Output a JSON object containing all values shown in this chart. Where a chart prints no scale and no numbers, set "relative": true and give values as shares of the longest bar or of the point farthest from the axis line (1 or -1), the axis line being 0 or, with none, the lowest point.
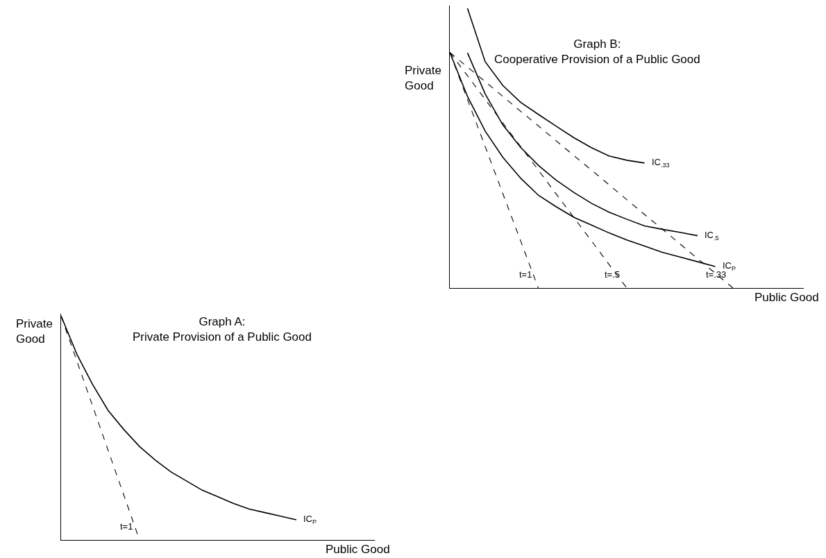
{
  "chart_data": [
    {
      "type": "line",
      "relative": true,
      "title": "Graph A:\nPrivate Provision of a Public Good",
      "xlabel": "Public Good",
      "ylabel": "Private\nGood",
      "categories": [
        null,
        null,
        null,
        null,
        null,
        null,
        null,
        null,
        null,
        null,
        null,
        null,
        null,
        null,
        null,
        null,
        null,
        null,
        null,
        null,
        null
      ],
      "series": [
        {
          "name": "IC$_{P}$",
          "color": "#000000",
          "line_style": "solid",
          "values": [
            1.0,
            0.83,
            0.695,
            0.578,
            0.493,
            0.417,
            0.357,
            0.304,
            0.263,
            0.222,
            0.193,
            0.163,
            0.138,
            0.122,
            0.106,
            0.09,
            null,
            null,
            null,
            null,
            null
          ]
        },
        {
          "name": "t=1",
          "color": "#000000",
          "line_style": "dashed",
          "values": [
            1.0,
            0.8,
            0.6,
            0.4,
            0.2,
            0,
            null,
            null,
            null,
            null,
            null,
            null,
            null,
            null,
            null,
            null,
            null,
            null,
            null,
            null,
            null
          ]
        }
      ],
      "legend": false
    },
    {
      "type": "line",
      "relative": true,
      "title": "Graph B:\nCooperative Provision of a Public Good",
      "xlabel": "Public Good",
      "ylabel": "Private\nGood",
      "categories": [
        null,
        null,
        null,
        null,
        null,
        null,
        null,
        null,
        null,
        null,
        null,
        null,
        null,
        null,
        null,
        null,
        null,
        null,
        null,
        null,
        null
      ],
      "series": [
        {
          "name": "IC$_{.33}$",
          "color": "#000000",
          "line_style": "solid",
          "values": [
            null,
            1.0,
            0.809,
            0.724,
            0.664,
            0.621,
            0.579,
            0.538,
            0.502,
            0.472,
            0.457,
            0.447,
            null,
            null,
            null,
            null,
            null,
            null,
            null,
            null,
            null
          ]
        },
        {
          "name": "IC$_{.5}$",
          "color": "#000000",
          "line_style": "solid",
          "values": [
            null,
            0.841,
            0.694,
            0.583,
            0.503,
            0.439,
            0.386,
            0.342,
            0.303,
            0.271,
            0.246,
            0.222,
            0.21,
            0.199,
            0.187,
            null,
            null,
            null,
            null,
            null,
            null
          ]
        },
        {
          "name": "IC$_{P}$",
          "color": "#000000",
          "line_style": "solid",
          "values": [
            0.843,
            0.685,
            0.561,
            0.467,
            0.393,
            0.332,
            0.291,
            0.253,
            0.225,
            0.197,
            0.172,
            0.15,
            0.128,
            0.111,
            0.094,
            0.077,
            null,
            null,
            null,
            null,
            null
          ]
        },
        {
          "name": "t=1",
          "color": "#000000",
          "line_style": "dashed",
          "values": [
            0.843,
            0.674,
            0.506,
            0.337,
            0.169,
            0,
            null,
            null,
            null,
            null,
            null,
            null,
            null,
            null,
            null,
            null,
            null,
            null,
            null,
            null,
            null
          ]
        },
        {
          "name": "t=.5",
          "color": "#000000",
          "line_style": "dashed",
          "values": [
            0.843,
            0.759,
            0.674,
            0.59,
            0.506,
            0.422,
            0.337,
            0.253,
            0.169,
            0.084,
            0,
            null,
            null,
            null,
            null,
            null,
            null,
            null,
            null,
            null,
            null
          ]
        },
        {
          "name": "t=.33",
          "color": "#000000",
          "line_style": "dashed",
          "values": [
            0.843,
            0.79,
            0.738,
            0.685,
            0.632,
            0.58,
            0.527,
            0.474,
            0.422,
            0.369,
            0.316,
            0.263,
            0.211,
            0.158,
            0.105,
            0.053,
            0,
            null,
            null,
            null,
            null
          ]
        }
      ],
      "legend": false
    }
  ]
}
